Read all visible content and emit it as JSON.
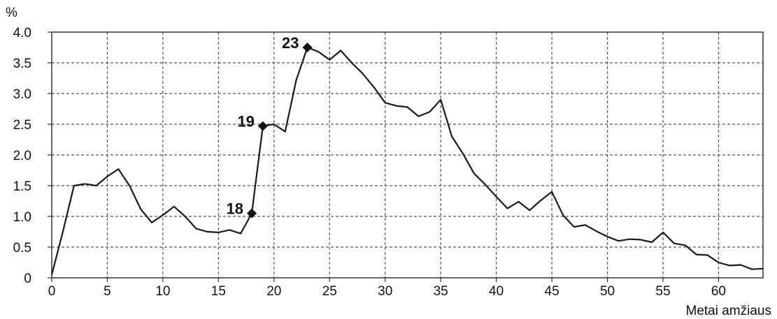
{
  "chart_data": {
    "type": "line",
    "title": "",
    "ylabel": "%",
    "xlabel": "Metai amžiaus",
    "xlim": [
      0,
      64
    ],
    "ylim": [
      0,
      4.0
    ],
    "x_ticks": [
      0,
      5,
      10,
      15,
      20,
      25,
      30,
      35,
      40,
      45,
      50,
      55,
      60
    ],
    "x_tick_labels": [
      "0",
      "5",
      "10",
      "15",
      "20",
      "25",
      "30",
      "35",
      "40",
      "45",
      "50",
      "55",
      "60"
    ],
    "y_ticks": [
      0,
      0.5,
      1.0,
      1.5,
      2.0,
      2.5,
      3.0,
      3.5,
      4.0
    ],
    "y_tick_labels": [
      "0",
      "0.5",
      "1.0",
      "1.5",
      "2.0",
      "2.5",
      "3.0",
      "3.5",
      "4.0"
    ],
    "grid": true,
    "series": [
      {
        "x": [
          0,
          1,
          2,
          3,
          4,
          5,
          6,
          7,
          8,
          9,
          10,
          11,
          12,
          13,
          14,
          15,
          16,
          17,
          18,
          19,
          20,
          21,
          22,
          23,
          24,
          25,
          26,
          27,
          28,
          29,
          30,
          31,
          32,
          33,
          34,
          35,
          36,
          37,
          38,
          39,
          40,
          41,
          42,
          43,
          44,
          45,
          46,
          47,
          48,
          49,
          50,
          51,
          52,
          53,
          54,
          55,
          56,
          57,
          58,
          59,
          60,
          61,
          62,
          63,
          64
        ],
        "y": [
          0.05,
          0.75,
          1.5,
          1.53,
          1.5,
          1.65,
          1.77,
          1.5,
          1.12,
          0.9,
          1.02,
          1.16,
          1.0,
          0.8,
          0.75,
          0.74,
          0.78,
          0.72,
          1.05,
          2.47,
          2.5,
          2.38,
          3.22,
          3.75,
          3.68,
          3.55,
          3.7,
          3.5,
          3.32,
          3.1,
          2.85,
          2.8,
          2.78,
          2.63,
          2.7,
          2.9,
          2.3,
          2.02,
          1.7,
          1.52,
          1.32,
          1.13,
          1.24,
          1.1,
          1.26,
          1.4,
          1.02,
          0.83,
          0.86,
          0.76,
          0.67,
          0.6,
          0.63,
          0.62,
          0.58,
          0.74,
          0.56,
          0.53,
          0.38,
          0.37,
          0.25,
          0.2,
          0.21,
          0.14,
          0.15
        ]
      }
    ],
    "annotations": [
      {
        "label": "18",
        "x": 18,
        "y": 1.05
      },
      {
        "label": "19",
        "x": 19,
        "y": 2.47
      },
      {
        "label": "23",
        "x": 23,
        "y": 3.75
      }
    ]
  }
}
